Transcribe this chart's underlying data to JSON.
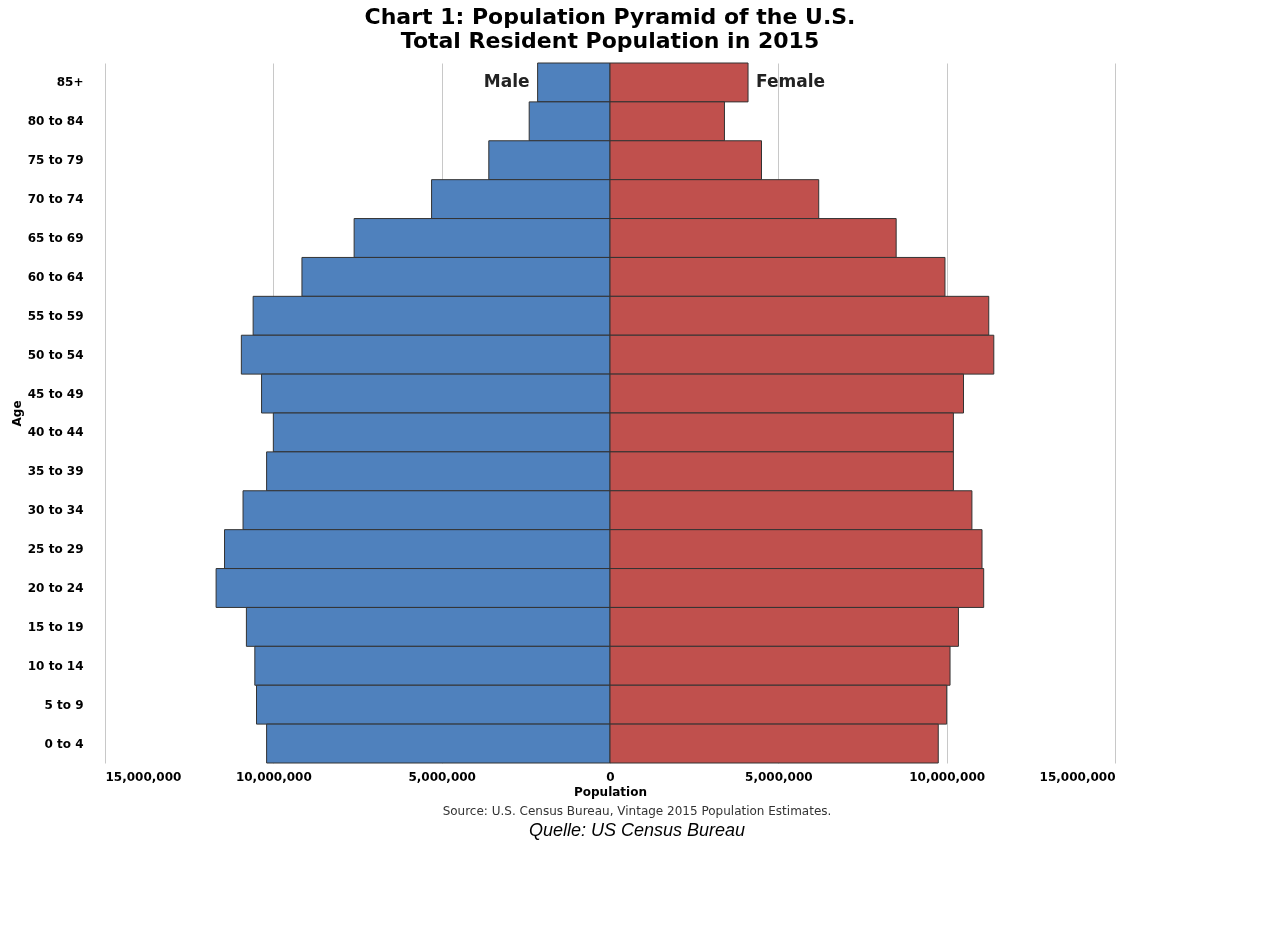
{
  "chart_data": {
    "type": "bar",
    "orientation": "horizontal",
    "title": "Chart 1: Population Pyramid of the U.S.",
    "subtitle": "Total Resident Population in 2015",
    "xlabel": "Population",
    "ylabel": "Age",
    "categories": [
      "85+",
      "80 to 84",
      "75 to 79",
      "70 to 74",
      "65 to 69",
      "60 to 64",
      "55 to 59",
      "50 to 54",
      "45 to 49",
      "40 to 44",
      "35 to 39",
      "30 to 34",
      "25 to 29",
      "20 to 24",
      "15 to 19",
      "10 to 14",
      "5 to 9",
      "0 to 4"
    ],
    "series": [
      {
        "name": "Male",
        "color": "#4f81bd",
        "values": [
          -2150000,
          -2400000,
          -3600000,
          -5300000,
          -7600000,
          -9150000,
          -10600000,
          -10950000,
          -10350000,
          -10000000,
          -10200000,
          -10900000,
          -11450000,
          -11700000,
          -10800000,
          -10550000,
          -10500000,
          -10200000
        ]
      },
      {
        "name": "Female",
        "color": "#c0504d",
        "values": [
          4100000,
          3400000,
          4500000,
          6200000,
          8500000,
          9950000,
          11250000,
          11400000,
          10500000,
          10200000,
          10200000,
          10750000,
          11050000,
          11100000,
          10350000,
          10100000,
          10000000,
          9750000
        ]
      }
    ],
    "xlim": [
      -15000000,
      15000000
    ],
    "xticks": [
      {
        "value": -15000000,
        "label": "15,000,000"
      },
      {
        "value": -10000000,
        "label": "10,000,000"
      },
      {
        "value": -5000000,
        "label": "5,000,000"
      },
      0,
      {
        "value": 5000000,
        "label": "5,000,000"
      },
      {
        "value": 10000000,
        "label": "10,000,000"
      },
      {
        "value": 15000000,
        "label": "15,000,000"
      }
    ],
    "grid": "x",
    "legend": false,
    "stacked": true,
    "annotations": [
      "Source: U.S. Census Bureau, Vintage 2015 Population Estimates.",
      "Quelle: US Census Bureau"
    ]
  }
}
